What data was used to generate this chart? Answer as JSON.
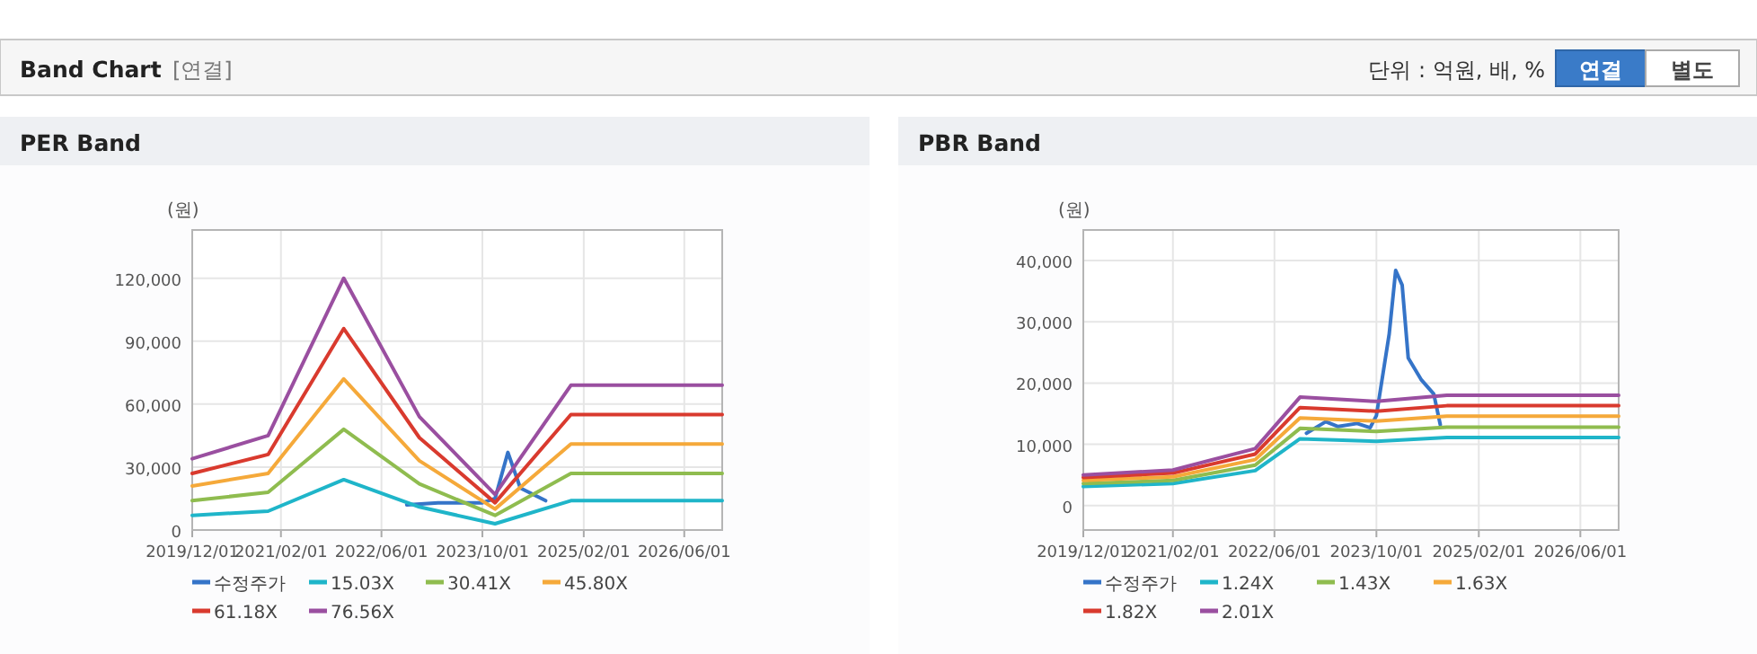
{
  "chart_data": [
    {
      "type": "other",
      "title": "Band Chart",
      "annotations": [
        "[연결]",
        "단위 : 억원, 배, %",
        "연결",
        "별도"
      ]
    },
    {
      "type": "line",
      "title": "PER Band",
      "ylabel": "(원)",
      "xlim": [
        "2019-12-01",
        "2026-12-01"
      ],
      "ylim": [
        0,
        143000
      ],
      "xticks": [
        {
          "value": "2019-12-01",
          "label": "2019/12/01"
        },
        {
          "value": "2021-02-01",
          "label": "2021/02/01"
        },
        {
          "value": "2022-06-01",
          "label": "2022/06/01"
        },
        {
          "value": "2023-10-01",
          "label": "2023/10/01"
        },
        {
          "value": "2025-02-01",
          "label": "2025/02/01"
        },
        {
          "value": "2026-06-01",
          "label": "2026/06/01"
        }
      ],
      "yticks": [
        0,
        {
          "value": 30000,
          "label": "30,000"
        },
        {
          "value": 60000,
          "label": "60,000"
        },
        {
          "value": 90000,
          "label": "90,000"
        },
        {
          "value": 120000,
          "label": "120,000"
        }
      ],
      "grid": true,
      "legend": "bottom",
      "marker": "none",
      "line_style": "solid",
      "x": [
        "2019-12",
        "2020-12",
        "2021-12",
        "2022-12",
        "2023-12",
        "2024-12",
        "2026-12"
      ],
      "series": [
        {
          "name": "수정주가",
          "color": "#3574c8",
          "x": [
            "2022-10",
            "2023-03",
            "2023-10",
            "2023-12",
            "2024-02",
            "2024-04",
            "2024-08"
          ],
          "values": [
            12000,
            13000,
            13000,
            15000,
            37000,
            20000,
            14000
          ]
        },
        {
          "name": "15.03X",
          "color": "#1fb5c9",
          "values": [
            7000,
            9000,
            24000,
            11000,
            3000,
            14000,
            14000
          ]
        },
        {
          "name": "30.41X",
          "color": "#8fbc4f",
          "values": [
            14000,
            18000,
            48000,
            22000,
            7000,
            27000,
            27000
          ]
        },
        {
          "name": "45.80X",
          "color": "#f5a93a",
          "values": [
            21000,
            27000,
            72000,
            33000,
            10000,
            41000,
            41000
          ]
        },
        {
          "name": "61.18X",
          "color": "#d93a2e",
          "values": [
            27000,
            36000,
            96000,
            44000,
            13000,
            55000,
            55000
          ]
        },
        {
          "name": "76.56X",
          "color": "#9a4fa0",
          "values": [
            34000,
            45000,
            120000,
            54000,
            17000,
            69000,
            69000
          ]
        }
      ]
    },
    {
      "type": "line",
      "title": "PBR Band",
      "ylabel": "(원)",
      "xlim": [
        "2019-12-01",
        "2026-12-01"
      ],
      "ylim": [
        -4000,
        45000
      ],
      "xticks": [
        {
          "value": "2019-12-01",
          "label": "2019/12/01"
        },
        {
          "value": "2021-02-01",
          "label": "2021/02/01"
        },
        {
          "value": "2022-06-01",
          "label": "2022/06/01"
        },
        {
          "value": "2023-10-01",
          "label": "2023/10/01"
        },
        {
          "value": "2025-02-01",
          "label": "2025/02/01"
        },
        {
          "value": "2026-06-01",
          "label": "2026/06/01"
        }
      ],
      "yticks": [
        0,
        {
          "value": 10000,
          "label": "10,000"
        },
        {
          "value": 20000,
          "label": "20,000"
        },
        {
          "value": 30000,
          "label": "30,000"
        },
        {
          "value": 40000,
          "label": "40,000"
        }
      ],
      "grid": true,
      "legend": "bottom",
      "marker": "none",
      "line_style": "solid",
      "x": [
        "2019-12",
        "2021-02",
        "2022-03",
        "2022-10",
        "2023-10",
        "2024-09",
        "2026-12"
      ],
      "series": [
        {
          "name": "수정주가",
          "color": "#3574c8",
          "x": [
            "2022-11",
            "2023-02",
            "2023-04",
            "2023-07",
            "2023-09",
            "2023-10",
            "2023-12",
            "2024-01",
            "2024-02",
            "2024-03",
            "2024-05",
            "2024-07",
            "2024-08"
          ],
          "values": [
            11800,
            13700,
            12900,
            13400,
            12700,
            14700,
            28000,
            38400,
            36000,
            24100,
            20600,
            18200,
            13200
          ]
        },
        {
          "name": "1.24X",
          "color": "#1fb5c9",
          "values": [
            3100,
            3600,
            5700,
            10900,
            10500,
            11100,
            11100
          ]
        },
        {
          "name": "1.43X",
          "color": "#8fbc4f",
          "values": [
            3600,
            4100,
            6600,
            12600,
            12100,
            12800,
            12800
          ]
        },
        {
          "name": "1.63X",
          "color": "#f5a93a",
          "values": [
            4100,
            4700,
            7500,
            14300,
            13800,
            14600,
            14600
          ]
        },
        {
          "name": "1.82X",
          "color": "#d93a2e",
          "values": [
            4600,
            5300,
            8400,
            16000,
            15400,
            16300,
            16300
          ]
        },
        {
          "name": "2.01X",
          "color": "#9a4fa0",
          "values": [
            5000,
            5800,
            9300,
            17700,
            17000,
            18000,
            18000
          ]
        }
      ]
    }
  ]
}
